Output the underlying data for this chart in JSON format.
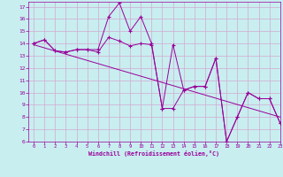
{
  "xlabel": "Windchill (Refroidissement éolien,°C)",
  "bg_color": "#c8eef0",
  "grid_color": "#d4a8d0",
  "line_color": "#990099",
  "marker": "+",
  "xlim": [
    -0.5,
    23
  ],
  "ylim": [
    6,
    17.4
  ],
  "xticks": [
    0,
    1,
    2,
    3,
    4,
    5,
    6,
    7,
    8,
    9,
    10,
    11,
    12,
    13,
    14,
    15,
    16,
    17,
    18,
    19,
    20,
    21,
    22,
    23
  ],
  "yticks": [
    6,
    7,
    8,
    9,
    10,
    11,
    12,
    13,
    14,
    15,
    16,
    17
  ],
  "series1_x": [
    0,
    1,
    2,
    3,
    4,
    5,
    6,
    7,
    8,
    9,
    10,
    11,
    12,
    13,
    14,
    15,
    16,
    17,
    18,
    19,
    20,
    21,
    22,
    23
  ],
  "series1_y": [
    14.0,
    14.3,
    13.4,
    13.3,
    13.5,
    13.5,
    13.3,
    14.5,
    14.2,
    13.8,
    14.0,
    13.9,
    8.7,
    13.9,
    10.2,
    10.5,
    10.5,
    12.8,
    6.0,
    8.0,
    10.0,
    9.5,
    9.5,
    7.5
  ],
  "series2_x": [
    0,
    1,
    2,
    3,
    4,
    5,
    6,
    7,
    8,
    9,
    10,
    11,
    12,
    13,
    14,
    15,
    16,
    17,
    18,
    19,
    20,
    21,
    22,
    23
  ],
  "series2_y": [
    14.0,
    14.3,
    13.4,
    13.3,
    13.5,
    13.5,
    13.5,
    16.2,
    17.3,
    15.0,
    16.2,
    14.0,
    8.7,
    8.7,
    10.2,
    10.5,
    10.5,
    12.8,
    6.0,
    8.0,
    10.0,
    9.5,
    9.5,
    7.5
  ],
  "series3_x": [
    0,
    23
  ],
  "series3_y": [
    13.9,
    8.0
  ]
}
